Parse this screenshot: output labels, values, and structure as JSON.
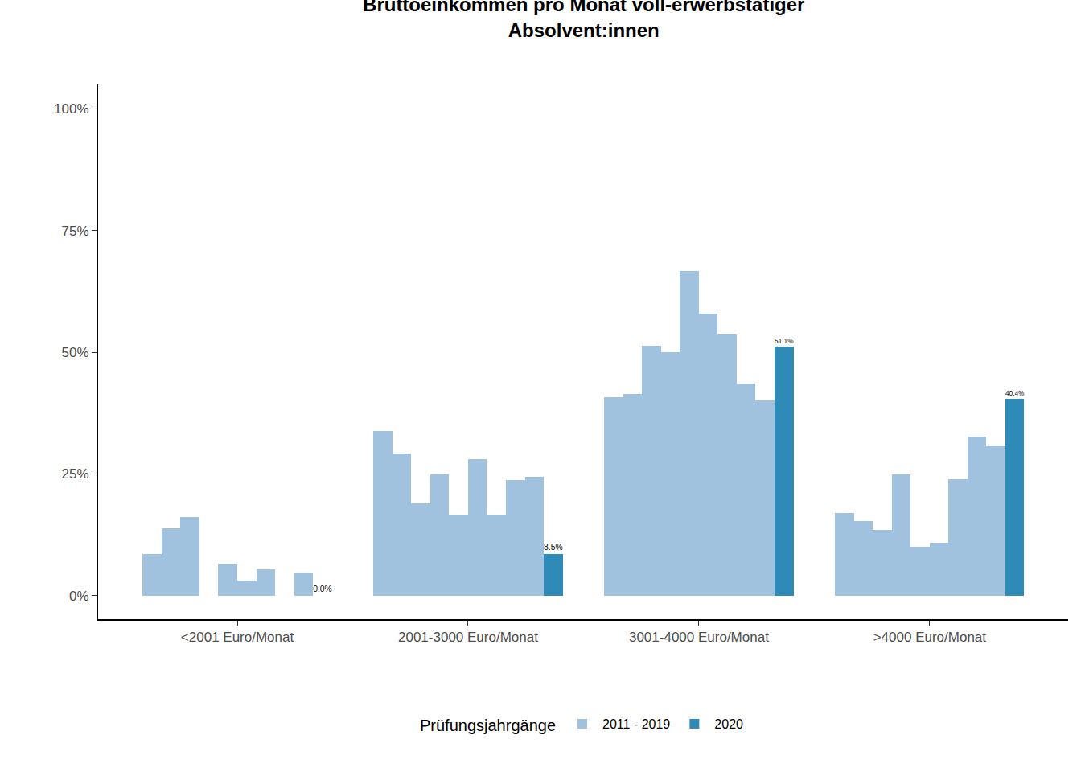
{
  "chart_data": {
    "type": "bar",
    "title": "Bruttoeinkommen pro Monat voll-erwerbstätiger\nAbsolvent:innen",
    "categories": [
      "<2001 Euro/Monat",
      "2001-3000 Euro/Monat",
      "3001-4000 Euro/Monat",
      ">4000 Euro/Monat"
    ],
    "series": [
      {
        "name": "2011 - 2019",
        "color": "#a1c2de",
        "values": [
          [
            8.5,
            13.9,
            16.2,
            0,
            6.6,
            3.1,
            5.5,
            0,
            4.7
          ],
          [
            33.8,
            29.2,
            19.0,
            25.0,
            16.7,
            28.0,
            16.7,
            23.8,
            24.5
          ],
          [
            40.8,
            41.5,
            51.3,
            50.0,
            66.7,
            57.9,
            53.8,
            43.5,
            40.1
          ],
          [
            17.0,
            15.4,
            13.5,
            25.0,
            10.0,
            10.9,
            24.0,
            32.7,
            30.8
          ]
        ]
      },
      {
        "name": "2020",
        "color": "#2e8bb8",
        "values": [
          0.0,
          8.5,
          51.1,
          40.4
        ],
        "value_labels": [
          "0.0%",
          "8.5%",
          "51.1%",
          "40.4%"
        ]
      }
    ],
    "legend_title": "Prüfungsjahrgänge",
    "legend": "bottom",
    "ylim": [
      -4.8,
      105
    ],
    "yticks": [
      {
        "value": 0,
        "label": "0%"
      },
      {
        "value": 25,
        "label": "25%"
      },
      {
        "value": 50,
        "label": "50%"
      },
      {
        "value": 75,
        "label": "75%"
      },
      {
        "value": 100,
        "label": "100%"
      }
    ],
    "grid": false
  }
}
